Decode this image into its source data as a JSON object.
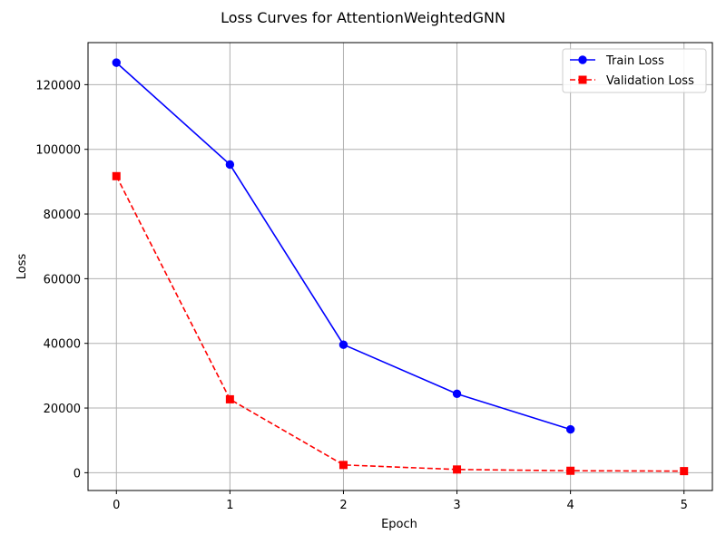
{
  "chart_data": {
    "type": "line",
    "title": "Loss Curves for AttentionWeightedGNN",
    "xlabel": "Epoch",
    "ylabel": "Loss",
    "xlim": [
      -0.25,
      5.25
    ],
    "ylim": [
      -5500,
      133000
    ],
    "x_ticks": [
      0,
      1,
      2,
      3,
      4,
      5
    ],
    "y_ticks": [
      0,
      20000,
      40000,
      60000,
      80000,
      100000,
      120000
    ],
    "grid": true,
    "legend_position": "top-right",
    "series": [
      {
        "name": "Train Loss",
        "color": "#0000ff",
        "line_style": "solid",
        "marker": "circle",
        "x": [
          0,
          1,
          2,
          3,
          4
        ],
        "values": [
          126800,
          95300,
          39600,
          24400,
          13400
        ]
      },
      {
        "name": "Validation Loss",
        "color": "#ff0000",
        "line_style": "dashed",
        "marker": "square",
        "x": [
          0,
          1,
          2,
          3,
          4,
          5
        ],
        "values": [
          91700,
          22700,
          2400,
          1000,
          600,
          500
        ]
      }
    ]
  }
}
